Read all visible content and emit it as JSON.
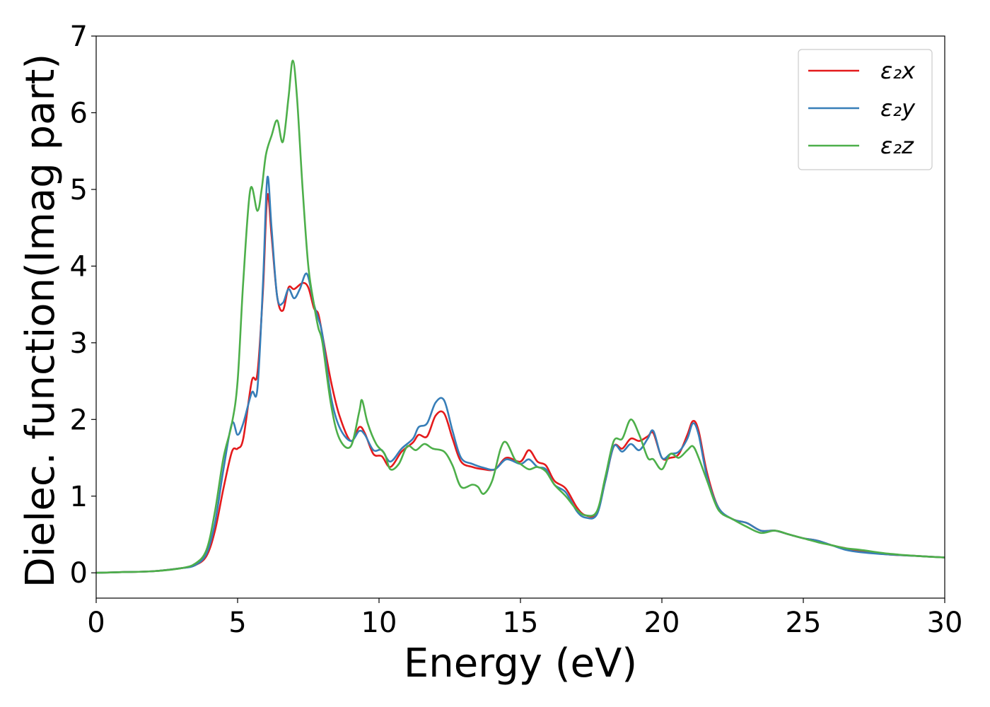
{
  "chart_data": {
    "type": "line",
    "title": "",
    "xlabel": "Energy (eV)",
    "ylabel": "Dielec. function(Imag part)",
    "xlim": [
      0,
      30
    ],
    "ylim": [
      -0.33,
      7
    ],
    "xticks": [
      0,
      5,
      10,
      15,
      20,
      25,
      30
    ],
    "yticks": [
      0,
      1,
      2,
      3,
      4,
      5,
      6,
      7
    ],
    "grid": false,
    "legend_position": "top-right",
    "series": [
      {
        "name": "ε₂x",
        "color": "#e41a1c",
        "points": [
          [
            0,
            0
          ],
          [
            1,
            0.01
          ],
          [
            2,
            0.02
          ],
          [
            3,
            0.06
          ],
          [
            3.5,
            0.1
          ],
          [
            3.9,
            0.22
          ],
          [
            4.2,
            0.55
          ],
          [
            4.5,
            1.1
          ],
          [
            4.8,
            1.58
          ],
          [
            5.0,
            1.62
          ],
          [
            5.2,
            1.75
          ],
          [
            5.5,
            2.5
          ],
          [
            5.7,
            2.6
          ],
          [
            5.9,
            3.7
          ],
          [
            6.05,
            4.92
          ],
          [
            6.2,
            4.4
          ],
          [
            6.4,
            3.6
          ],
          [
            6.6,
            3.42
          ],
          [
            6.8,
            3.72
          ],
          [
            7.0,
            3.7
          ],
          [
            7.3,
            3.78
          ],
          [
            7.5,
            3.72
          ],
          [
            7.7,
            3.45
          ],
          [
            7.85,
            3.38
          ],
          [
            8.0,
            3.1
          ],
          [
            8.3,
            2.5
          ],
          [
            8.6,
            2.05
          ],
          [
            9.0,
            1.72
          ],
          [
            9.3,
            1.9
          ],
          [
            9.5,
            1.82
          ],
          [
            9.8,
            1.55
          ],
          [
            10.1,
            1.52
          ],
          [
            10.4,
            1.38
          ],
          [
            10.8,
            1.58
          ],
          [
            11.2,
            1.7
          ],
          [
            11.4,
            1.8
          ],
          [
            11.7,
            1.78
          ],
          [
            12.0,
            2.05
          ],
          [
            12.3,
            2.08
          ],
          [
            12.6,
            1.75
          ],
          [
            12.9,
            1.45
          ],
          [
            13.3,
            1.38
          ],
          [
            13.7,
            1.35
          ],
          [
            14.1,
            1.35
          ],
          [
            14.5,
            1.5
          ],
          [
            15.0,
            1.45
          ],
          [
            15.3,
            1.6
          ],
          [
            15.6,
            1.45
          ],
          [
            15.9,
            1.4
          ],
          [
            16.2,
            1.2
          ],
          [
            16.6,
            1.1
          ],
          [
            17.0,
            0.85
          ],
          [
            17.3,
            0.75
          ],
          [
            17.7,
            0.78
          ],
          [
            18.0,
            1.2
          ],
          [
            18.3,
            1.65
          ],
          [
            18.6,
            1.62
          ],
          [
            18.9,
            1.75
          ],
          [
            19.2,
            1.72
          ],
          [
            19.5,
            1.78
          ],
          [
            19.7,
            1.82
          ],
          [
            20.0,
            1.5
          ],
          [
            20.3,
            1.5
          ],
          [
            20.6,
            1.55
          ],
          [
            20.9,
            1.8
          ],
          [
            21.1,
            1.98
          ],
          [
            21.3,
            1.85
          ],
          [
            21.6,
            1.3
          ],
          [
            22.0,
            0.85
          ],
          [
            22.5,
            0.7
          ],
          [
            23.0,
            0.65
          ],
          [
            23.5,
            0.55
          ],
          [
            24.0,
            0.55
          ],
          [
            24.5,
            0.5
          ],
          [
            25.0,
            0.45
          ],
          [
            25.5,
            0.42
          ],
          [
            26.0,
            0.36
          ],
          [
            26.5,
            0.32
          ],
          [
            27.0,
            0.28
          ],
          [
            28.0,
            0.24
          ],
          [
            29.0,
            0.22
          ],
          [
            30,
            0.2
          ]
        ]
      },
      {
        "name": "ε₂y",
        "color": "#377eb8",
        "points": [
          [
            0,
            0
          ],
          [
            1,
            0.01
          ],
          [
            2,
            0.02
          ],
          [
            3,
            0.06
          ],
          [
            3.5,
            0.1
          ],
          [
            3.9,
            0.25
          ],
          [
            4.2,
            0.65
          ],
          [
            4.5,
            1.35
          ],
          [
            4.8,
            1.95
          ],
          [
            5.0,
            1.8
          ],
          [
            5.2,
            1.95
          ],
          [
            5.5,
            2.35
          ],
          [
            5.7,
            2.4
          ],
          [
            5.9,
            3.8
          ],
          [
            6.05,
            5.15
          ],
          [
            6.2,
            4.5
          ],
          [
            6.4,
            3.6
          ],
          [
            6.6,
            3.52
          ],
          [
            6.8,
            3.7
          ],
          [
            7.0,
            3.58
          ],
          [
            7.2,
            3.7
          ],
          [
            7.45,
            3.9
          ],
          [
            7.7,
            3.5
          ],
          [
            7.85,
            3.32
          ],
          [
            8.0,
            3.1
          ],
          [
            8.3,
            2.3
          ],
          [
            8.6,
            1.9
          ],
          [
            9.0,
            1.72
          ],
          [
            9.3,
            1.85
          ],
          [
            9.5,
            1.8
          ],
          [
            9.8,
            1.6
          ],
          [
            10.1,
            1.6
          ],
          [
            10.4,
            1.45
          ],
          [
            10.8,
            1.62
          ],
          [
            11.2,
            1.75
          ],
          [
            11.4,
            1.9
          ],
          [
            11.7,
            1.95
          ],
          [
            12.0,
            2.22
          ],
          [
            12.3,
            2.25
          ],
          [
            12.6,
            1.85
          ],
          [
            12.9,
            1.5
          ],
          [
            13.3,
            1.42
          ],
          [
            13.7,
            1.37
          ],
          [
            14.1,
            1.35
          ],
          [
            14.5,
            1.48
          ],
          [
            15.0,
            1.42
          ],
          [
            15.3,
            1.48
          ],
          [
            15.6,
            1.38
          ],
          [
            15.9,
            1.35
          ],
          [
            16.2,
            1.15
          ],
          [
            16.6,
            1.05
          ],
          [
            17.0,
            0.8
          ],
          [
            17.3,
            0.72
          ],
          [
            17.7,
            0.76
          ],
          [
            18.0,
            1.2
          ],
          [
            18.3,
            1.65
          ],
          [
            18.6,
            1.58
          ],
          [
            18.9,
            1.68
          ],
          [
            19.2,
            1.6
          ],
          [
            19.5,
            1.75
          ],
          [
            19.7,
            1.85
          ],
          [
            20.0,
            1.5
          ],
          [
            20.3,
            1.55
          ],
          [
            20.6,
            1.58
          ],
          [
            20.9,
            1.75
          ],
          [
            21.1,
            1.95
          ],
          [
            21.3,
            1.8
          ],
          [
            21.6,
            1.25
          ],
          [
            22.0,
            0.85
          ],
          [
            22.5,
            0.7
          ],
          [
            23.0,
            0.65
          ],
          [
            23.5,
            0.55
          ],
          [
            24.0,
            0.55
          ],
          [
            24.5,
            0.5
          ],
          [
            25.0,
            0.45
          ],
          [
            25.5,
            0.42
          ],
          [
            26.0,
            0.36
          ],
          [
            26.5,
            0.3
          ],
          [
            27.0,
            0.27
          ],
          [
            28.0,
            0.24
          ],
          [
            29.0,
            0.22
          ],
          [
            30,
            0.2
          ]
        ]
      },
      {
        "name": "ε₂z",
        "color": "#4daf4a",
        "points": [
          [
            0,
            0
          ],
          [
            1,
            0.01
          ],
          [
            2,
            0.02
          ],
          [
            3,
            0.06
          ],
          [
            3.5,
            0.12
          ],
          [
            3.9,
            0.3
          ],
          [
            4.2,
            0.8
          ],
          [
            4.5,
            1.5
          ],
          [
            4.8,
            1.95
          ],
          [
            5.0,
            2.5
          ],
          [
            5.2,
            3.8
          ],
          [
            5.45,
            5.0
          ],
          [
            5.7,
            4.72
          ],
          [
            5.85,
            5.0
          ],
          [
            6.0,
            5.45
          ],
          [
            6.2,
            5.7
          ],
          [
            6.4,
            5.9
          ],
          [
            6.6,
            5.62
          ],
          [
            6.8,
            6.2
          ],
          [
            6.95,
            6.68
          ],
          [
            7.1,
            6.2
          ],
          [
            7.3,
            5.0
          ],
          [
            7.5,
            4.0
          ],
          [
            7.7,
            3.5
          ],
          [
            7.85,
            3.2
          ],
          [
            8.0,
            3.0
          ],
          [
            8.3,
            2.2
          ],
          [
            8.6,
            1.75
          ],
          [
            9.0,
            1.65
          ],
          [
            9.3,
            2.1
          ],
          [
            9.4,
            2.25
          ],
          [
            9.6,
            1.95
          ],
          [
            9.9,
            1.68
          ],
          [
            10.2,
            1.55
          ],
          [
            10.4,
            1.35
          ],
          [
            10.7,
            1.42
          ],
          [
            11.0,
            1.65
          ],
          [
            11.3,
            1.6
          ],
          [
            11.6,
            1.68
          ],
          [
            11.9,
            1.62
          ],
          [
            12.3,
            1.58
          ],
          [
            12.6,
            1.4
          ],
          [
            12.9,
            1.12
          ],
          [
            13.3,
            1.15
          ],
          [
            13.5,
            1.12
          ],
          [
            13.7,
            1.03
          ],
          [
            14.0,
            1.2
          ],
          [
            14.3,
            1.62
          ],
          [
            14.5,
            1.7
          ],
          [
            14.8,
            1.48
          ],
          [
            15.0,
            1.42
          ],
          [
            15.3,
            1.35
          ],
          [
            15.6,
            1.38
          ],
          [
            15.9,
            1.32
          ],
          [
            16.2,
            1.15
          ],
          [
            16.6,
            1.0
          ],
          [
            17.0,
            0.82
          ],
          [
            17.3,
            0.75
          ],
          [
            17.7,
            0.8
          ],
          [
            18.0,
            1.25
          ],
          [
            18.3,
            1.72
          ],
          [
            18.6,
            1.75
          ],
          [
            18.9,
            2.0
          ],
          [
            19.2,
            1.8
          ],
          [
            19.5,
            1.5
          ],
          [
            19.7,
            1.48
          ],
          [
            20.0,
            1.35
          ],
          [
            20.3,
            1.55
          ],
          [
            20.6,
            1.5
          ],
          [
            20.9,
            1.6
          ],
          [
            21.1,
            1.65
          ],
          [
            21.3,
            1.5
          ],
          [
            21.6,
            1.2
          ],
          [
            22.0,
            0.82
          ],
          [
            22.5,
            0.7
          ],
          [
            23.0,
            0.6
          ],
          [
            23.5,
            0.52
          ],
          [
            24.0,
            0.55
          ],
          [
            24.5,
            0.5
          ],
          [
            25.0,
            0.45
          ],
          [
            25.5,
            0.4
          ],
          [
            26.0,
            0.36
          ],
          [
            26.5,
            0.32
          ],
          [
            27.0,
            0.3
          ],
          [
            28.0,
            0.25
          ],
          [
            29.0,
            0.22
          ],
          [
            30,
            0.2
          ]
        ]
      }
    ]
  }
}
